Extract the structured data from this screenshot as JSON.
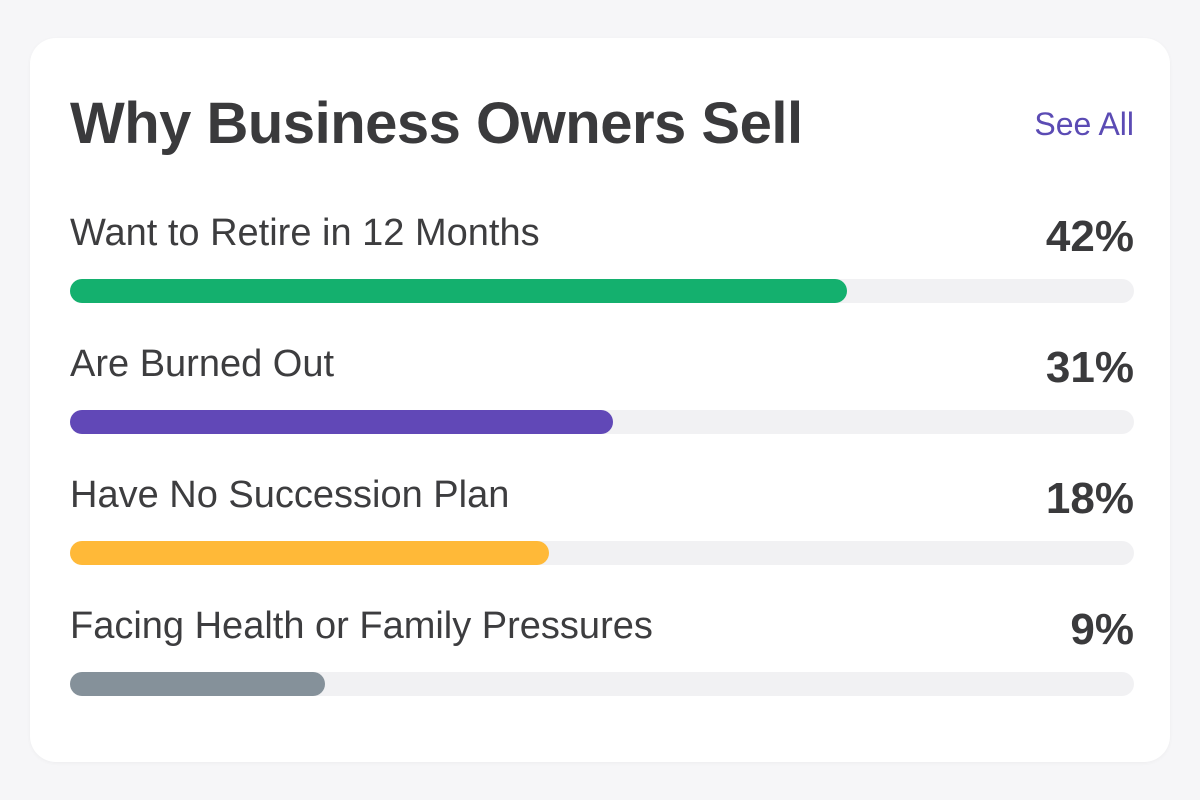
{
  "header": {
    "title": "Why Business Owners Sell",
    "see_all_label": "See All",
    "link_color": "#5b4bb4"
  },
  "reasons": [
    {
      "label": "Want to Retire in 12 Months",
      "value": "42%",
      "bar_fill_fraction": 0.73,
      "color": "#14b06e"
    },
    {
      "label": "Are Burned Out",
      "value": "31%",
      "bar_fill_fraction": 0.51,
      "color": "#6148b7"
    },
    {
      "label": "Have No Succession Plan",
      "value": "18%",
      "bar_fill_fraction": 0.45,
      "color": "#ffb938"
    },
    {
      "label": "Facing Health or Family Pressures",
      "value": "9%",
      "bar_fill_fraction": 0.24,
      "color": "#85919a"
    }
  ]
}
